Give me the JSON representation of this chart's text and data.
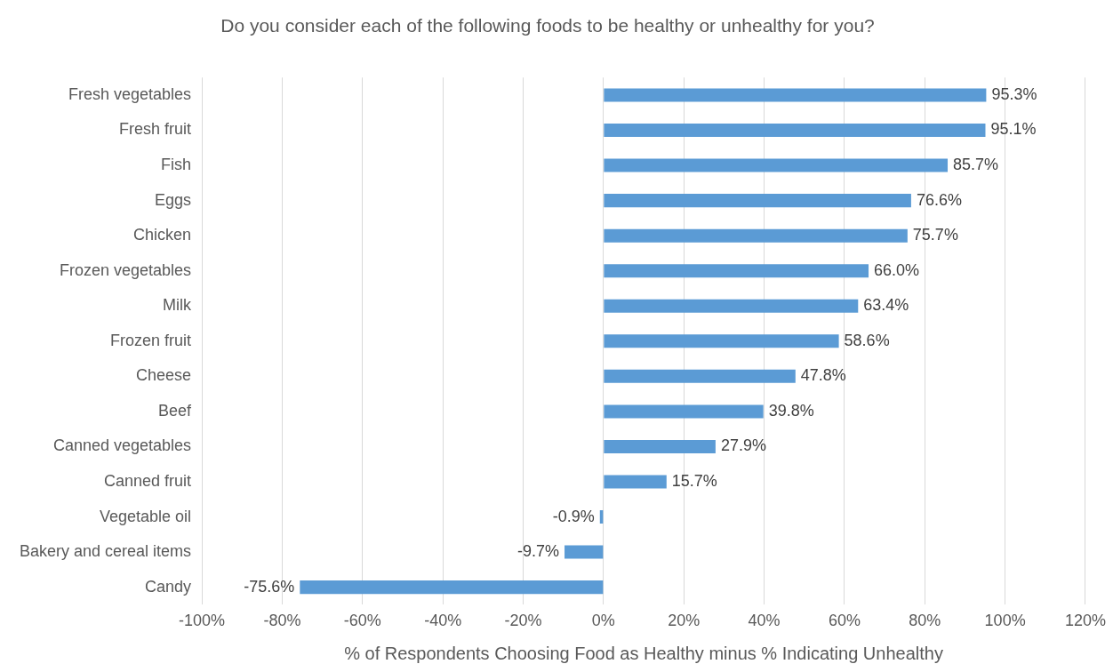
{
  "chart_data": {
    "type": "bar",
    "orientation": "horizontal",
    "title": "Do you consider each of the following foods to be healthy or unhealthy for you?",
    "xlabel": "% of Respondents Choosing Food as Healthy minus % Indicating Unhealthy",
    "categories": [
      "Fresh vegetables",
      "Fresh fruit",
      "Fish",
      "Eggs",
      "Chicken",
      "Frozen vegetables",
      "Milk",
      "Frozen fruit",
      "Cheese",
      "Beef",
      "Canned vegetables",
      "Canned fruit",
      "Vegetable oil",
      "Bakery and cereal items",
      "Candy"
    ],
    "values": [
      95.3,
      95.1,
      85.7,
      76.6,
      75.7,
      66.0,
      63.4,
      58.6,
      47.8,
      39.8,
      27.9,
      15.7,
      -0.9,
      -9.7,
      -75.6
    ],
    "value_labels": [
      "95.3%",
      "95.1%",
      "85.7%",
      "76.6%",
      "75.7%",
      "66.0%",
      "63.4%",
      "58.6%",
      "47.8%",
      "39.8%",
      "27.9%",
      "15.7%",
      "-0.9%",
      "-9.7%",
      "-75.6%"
    ],
    "color": "#5b9bd5",
    "xlim": [
      -100,
      120
    ],
    "xticks": [
      {
        "value": -100,
        "label": "-100%"
      },
      {
        "value": -80,
        "label": "-80%"
      },
      {
        "value": -60,
        "label": "-60%"
      },
      {
        "value": -40,
        "label": "-40%"
      },
      {
        "value": -20,
        "label": "-20%"
      },
      {
        "value": 0,
        "label": "0%"
      },
      {
        "value": 20,
        "label": "20%"
      },
      {
        "value": 40,
        "label": "40%"
      },
      {
        "value": 60,
        "label": "60%"
      },
      {
        "value": 80,
        "label": "80%"
      },
      {
        "value": 100,
        "label": "100%"
      },
      {
        "value": 120,
        "label": "120%"
      }
    ],
    "grid": "x",
    "legend": false
  }
}
